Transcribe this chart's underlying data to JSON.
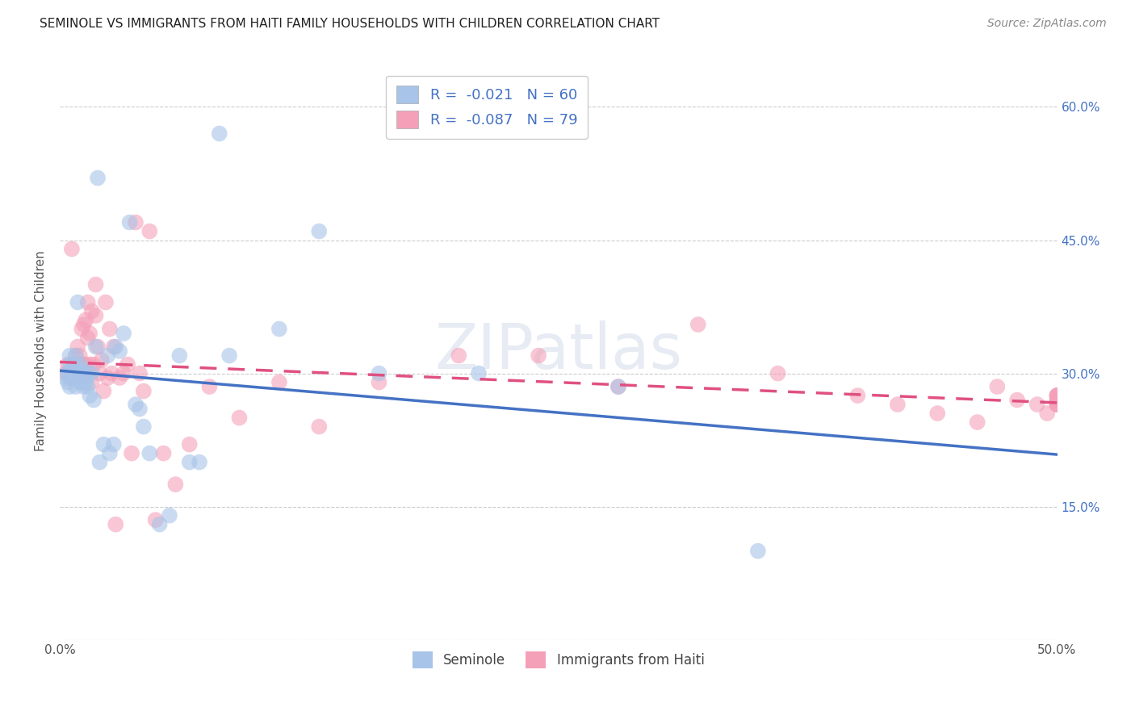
{
  "title": "SEMINOLE VS IMMIGRANTS FROM HAITI FAMILY HOUSEHOLDS WITH CHILDREN CORRELATION CHART",
  "source": "Source: ZipAtlas.com",
  "ylabel": "Family Households with Children",
  "x_min": 0.0,
  "x_max": 0.5,
  "y_min": 0.0,
  "y_max": 0.65,
  "x_ticks": [
    0.0,
    0.05,
    0.1,
    0.15,
    0.2,
    0.25,
    0.3,
    0.35,
    0.4,
    0.45,
    0.5
  ],
  "x_tick_labels": [
    "0.0%",
    "",
    "",
    "",
    "",
    "",
    "",
    "",
    "",
    "",
    "50.0%"
  ],
  "y_ticks": [
    0.0,
    0.15,
    0.3,
    0.45,
    0.6
  ],
  "y_tick_labels_right": [
    "",
    "15.0%",
    "30.0%",
    "45.0%",
    "60.0%"
  ],
  "legend_R1": "-0.021",
  "legend_N1": "60",
  "legend_R2": "-0.087",
  "legend_N2": "79",
  "color_blue": "#a8c4e8",
  "color_pink": "#f4a0b8",
  "watermark": "ZIPatlas",
  "seminole_x": [
    0.003,
    0.004,
    0.004,
    0.005,
    0.005,
    0.005,
    0.006,
    0.006,
    0.007,
    0.007,
    0.007,
    0.008,
    0.008,
    0.008,
    0.009,
    0.009,
    0.009,
    0.01,
    0.01,
    0.01,
    0.01,
    0.011,
    0.011,
    0.012,
    0.012,
    0.013,
    0.013,
    0.014,
    0.014,
    0.015,
    0.016,
    0.017,
    0.018,
    0.019,
    0.02,
    0.022,
    0.024,
    0.025,
    0.027,
    0.028,
    0.03,
    0.032,
    0.035,
    0.038,
    0.04,
    0.042,
    0.045,
    0.05,
    0.055,
    0.06,
    0.065,
    0.07,
    0.08,
    0.085,
    0.11,
    0.13,
    0.16,
    0.21,
    0.28,
    0.35
  ],
  "seminole_y": [
    0.295,
    0.3,
    0.29,
    0.31,
    0.285,
    0.32,
    0.295,
    0.305,
    0.295,
    0.3,
    0.31,
    0.285,
    0.305,
    0.32,
    0.295,
    0.3,
    0.38,
    0.295,
    0.29,
    0.3,
    0.31,
    0.29,
    0.305,
    0.285,
    0.3,
    0.295,
    0.29,
    0.285,
    0.3,
    0.275,
    0.3,
    0.27,
    0.33,
    0.52,
    0.2,
    0.22,
    0.32,
    0.21,
    0.22,
    0.33,
    0.325,
    0.345,
    0.47,
    0.265,
    0.26,
    0.24,
    0.21,
    0.13,
    0.14,
    0.32,
    0.2,
    0.2,
    0.57,
    0.32,
    0.35,
    0.46,
    0.3,
    0.3,
    0.285,
    0.1
  ],
  "haiti_x": [
    0.003,
    0.004,
    0.005,
    0.006,
    0.006,
    0.007,
    0.007,
    0.008,
    0.008,
    0.009,
    0.009,
    0.01,
    0.01,
    0.01,
    0.011,
    0.011,
    0.012,
    0.012,
    0.013,
    0.013,
    0.014,
    0.014,
    0.015,
    0.015,
    0.016,
    0.016,
    0.017,
    0.018,
    0.018,
    0.019,
    0.02,
    0.021,
    0.022,
    0.023,
    0.024,
    0.025,
    0.026,
    0.027,
    0.028,
    0.03,
    0.032,
    0.034,
    0.036,
    0.038,
    0.04,
    0.042,
    0.045,
    0.048,
    0.052,
    0.058,
    0.065,
    0.075,
    0.09,
    0.11,
    0.13,
    0.16,
    0.2,
    0.24,
    0.28,
    0.32,
    0.36,
    0.4,
    0.42,
    0.44,
    0.46,
    0.47,
    0.48,
    0.49,
    0.495,
    0.5,
    0.5,
    0.5,
    0.5,
    0.5,
    0.5,
    0.5,
    0.5,
    0.5,
    0.5
  ],
  "haiti_y": [
    0.3,
    0.31,
    0.295,
    0.44,
    0.3,
    0.31,
    0.295,
    0.3,
    0.32,
    0.33,
    0.295,
    0.3,
    0.31,
    0.32,
    0.295,
    0.35,
    0.355,
    0.31,
    0.36,
    0.31,
    0.34,
    0.38,
    0.31,
    0.345,
    0.29,
    0.37,
    0.31,
    0.365,
    0.4,
    0.33,
    0.3,
    0.315,
    0.28,
    0.38,
    0.295,
    0.35,
    0.3,
    0.33,
    0.13,
    0.295,
    0.3,
    0.31,
    0.21,
    0.47,
    0.3,
    0.28,
    0.46,
    0.135,
    0.21,
    0.175,
    0.22,
    0.285,
    0.25,
    0.29,
    0.24,
    0.29,
    0.32,
    0.32,
    0.285,
    0.355,
    0.3,
    0.275,
    0.265,
    0.255,
    0.245,
    0.285,
    0.27,
    0.265,
    0.255,
    0.275,
    0.265,
    0.275,
    0.265,
    0.27,
    0.265,
    0.27,
    0.275,
    0.265,
    0.275
  ]
}
